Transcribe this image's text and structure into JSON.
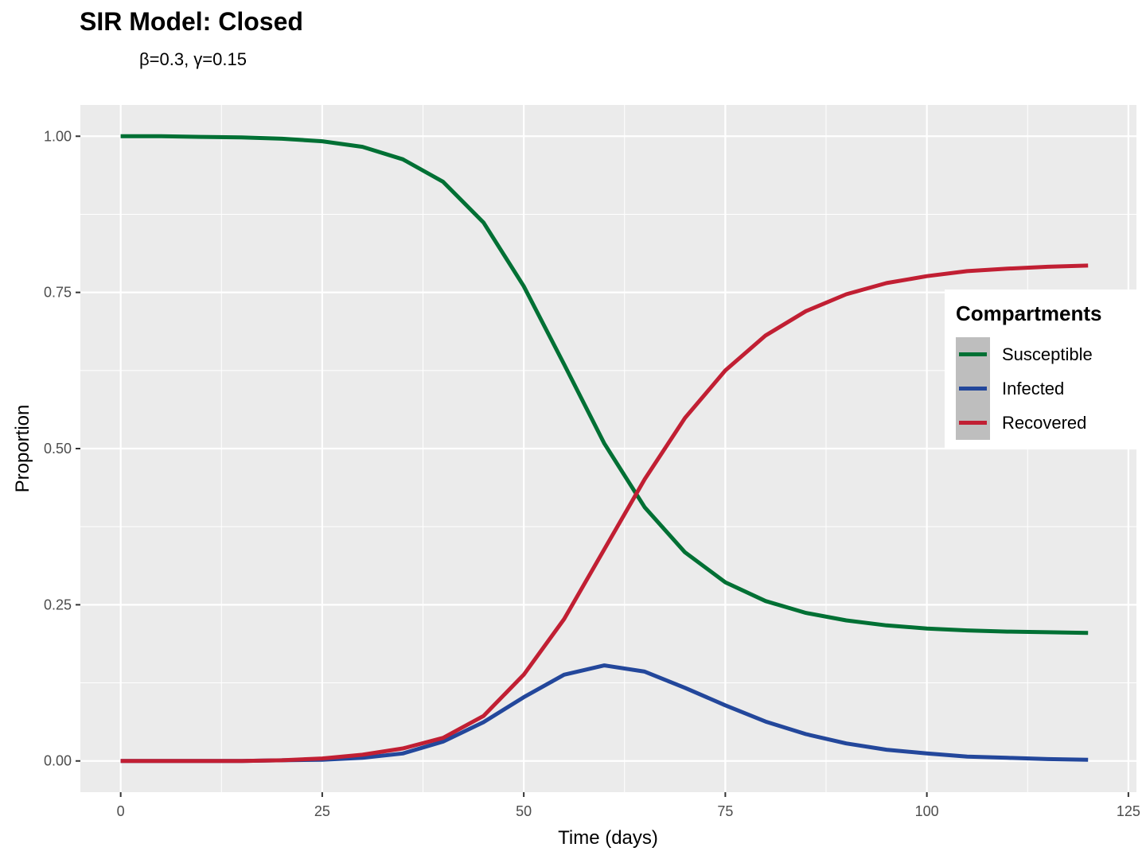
{
  "chart_data": {
    "type": "line",
    "title": "SIR Model: Closed",
    "subtitle": "β=0.3,  γ=0.15",
    "xlabel": "Time (days)",
    "ylabel": "Proportion",
    "xlim": [
      -5,
      126
    ],
    "ylim": [
      -0.05,
      1.05
    ],
    "x_ticks": [
      0,
      25,
      50,
      75,
      100,
      125
    ],
    "y_ticks": [
      0.0,
      0.25,
      0.5,
      0.75,
      1.0
    ],
    "x_tick_labels": [
      "0",
      "25",
      "50",
      "75",
      "100",
      "125"
    ],
    "y_tick_labels": [
      "0.00",
      "0.25",
      "0.50",
      "0.75",
      "1.00"
    ],
    "grid": true,
    "legend": {
      "title": "Compartments",
      "placement": "right",
      "entries": [
        "Susceptible",
        "Infected",
        "Recovered"
      ]
    },
    "x": [
      0,
      5,
      10,
      15,
      20,
      25,
      30,
      35,
      40,
      45,
      50,
      55,
      60,
      65,
      70,
      75,
      80,
      85,
      90,
      95,
      100,
      105,
      110,
      115,
      120
    ],
    "series": [
      {
        "name": "Susceptible",
        "color": "#007034",
        "values": [
          1.0,
          1.0,
          0.999,
          0.998,
          0.996,
          0.992,
          0.983,
          0.963,
          0.927,
          0.862,
          0.76,
          0.635,
          0.508,
          0.406,
          0.334,
          0.286,
          0.256,
          0.237,
          0.225,
          0.217,
          0.212,
          0.209,
          0.207,
          0.206,
          0.205
        ]
      },
      {
        "name": "Infected",
        "color": "#23479b",
        "values": [
          0.0,
          0.0,
          0.0,
          0.0,
          0.001,
          0.002,
          0.005,
          0.012,
          0.031,
          0.062,
          0.102,
          0.138,
          0.153,
          0.143,
          0.117,
          0.089,
          0.063,
          0.043,
          0.028,
          0.018,
          0.012,
          0.007,
          0.005,
          0.003,
          0.002
        ]
      },
      {
        "name": "Recovered",
        "color": "#c11f33",
        "values": [
          0.0,
          0.0,
          0.0,
          0.0,
          0.001,
          0.004,
          0.01,
          0.02,
          0.037,
          0.072,
          0.138,
          0.227,
          0.339,
          0.451,
          0.549,
          0.625,
          0.681,
          0.72,
          0.747,
          0.765,
          0.776,
          0.784,
          0.788,
          0.791,
          0.793
        ]
      }
    ]
  }
}
